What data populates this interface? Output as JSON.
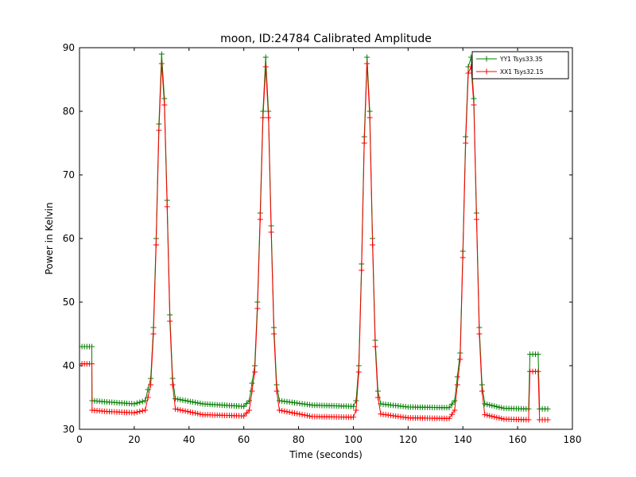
{
  "chart_data": {
    "type": "line",
    "title": "moon, ID:24784 Calibrated Amplitude",
    "xlabel": "Time (seconds)",
    "ylabel": "Power in Kelvin",
    "xlim": [
      0,
      180
    ],
    "ylim": [
      30,
      90
    ],
    "xticks": [
      0,
      20,
      40,
      60,
      80,
      100,
      120,
      140,
      160,
      180
    ],
    "yticks": [
      30,
      40,
      50,
      60,
      70,
      80,
      90
    ],
    "legend_position": "top-right",
    "series": [
      {
        "name": "YY1 Tsys33.35",
        "color": "#008000",
        "marker": "+",
        "points": [
          [
            0,
            43.0
          ],
          [
            4.5,
            43.0
          ],
          [
            4.6,
            34.5
          ],
          [
            10,
            34.3
          ],
          [
            20,
            34.0
          ],
          [
            24,
            34.5
          ],
          [
            26,
            38
          ],
          [
            27,
            46
          ],
          [
            28,
            60
          ],
          [
            29,
            78
          ],
          [
            30,
            89.0
          ],
          [
            31,
            82
          ],
          [
            32,
            66
          ],
          [
            33,
            48
          ],
          [
            34,
            38
          ],
          [
            35,
            34.8
          ],
          [
            45,
            34.0
          ],
          [
            60,
            33.6
          ],
          [
            62,
            34.5
          ],
          [
            64,
            40
          ],
          [
            65,
            50
          ],
          [
            66,
            64
          ],
          [
            67,
            80
          ],
          [
            68,
            88.5
          ],
          [
            69,
            80
          ],
          [
            70,
            62
          ],
          [
            71,
            46
          ],
          [
            72,
            37
          ],
          [
            73,
            34.5
          ],
          [
            85,
            33.8
          ],
          [
            100,
            33.6
          ],
          [
            101,
            34.5
          ],
          [
            102,
            40
          ],
          [
            103,
            56
          ],
          [
            104,
            76
          ],
          [
            105,
            88.5
          ],
          [
            106,
            80
          ],
          [
            107,
            60
          ],
          [
            108,
            44
          ],
          [
            109,
            36
          ],
          [
            110,
            34.0
          ],
          [
            120,
            33.5
          ],
          [
            135,
            33.4
          ],
          [
            137,
            34.5
          ],
          [
            139,
            42
          ],
          [
            140,
            58
          ],
          [
            141,
            76
          ],
          [
            142,
            87
          ],
          [
            143,
            88.5
          ],
          [
            144,
            82
          ],
          [
            145,
            64
          ],
          [
            146,
            46
          ],
          [
            147,
            37
          ],
          [
            148,
            34.0
          ],
          [
            155,
            33.3
          ],
          [
            164,
            33.2
          ],
          [
            164.5,
            41.8
          ],
          [
            167.5,
            41.8
          ],
          [
            168,
            33.2
          ],
          [
            171,
            33.2
          ]
        ]
      },
      {
        "name": "XX1 Tsys32.15",
        "color": "#ff0000",
        "marker": "+",
        "points": [
          [
            0,
            40.3
          ],
          [
            4.5,
            40.3
          ],
          [
            4.6,
            33.0
          ],
          [
            10,
            32.8
          ],
          [
            20,
            32.6
          ],
          [
            24,
            33.0
          ],
          [
            26,
            37
          ],
          [
            27,
            45
          ],
          [
            28,
            59
          ],
          [
            29,
            77
          ],
          [
            30,
            87.5
          ],
          [
            31,
            81
          ],
          [
            32,
            65
          ],
          [
            33,
            47
          ],
          [
            34,
            37
          ],
          [
            35,
            33.2
          ],
          [
            45,
            32.3
          ],
          [
            60,
            32.1
          ],
          [
            62,
            33.0
          ],
          [
            64,
            39
          ],
          [
            65,
            49
          ],
          [
            66,
            63
          ],
          [
            67,
            79
          ],
          [
            68,
            87.0
          ],
          [
            69,
            79
          ],
          [
            70,
            61
          ],
          [
            71,
            45
          ],
          [
            72,
            36
          ],
          [
            73,
            33.0
          ],
          [
            85,
            32.0
          ],
          [
            100,
            31.9
          ],
          [
            101,
            33.0
          ],
          [
            102,
            39
          ],
          [
            103,
            55
          ],
          [
            104,
            75
          ],
          [
            105,
            87.5
          ],
          [
            106,
            79
          ],
          [
            107,
            59
          ],
          [
            108,
            43
          ],
          [
            109,
            35
          ],
          [
            110,
            32.4
          ],
          [
            120,
            31.8
          ],
          [
            135,
            31.7
          ],
          [
            137,
            33.0
          ],
          [
            139,
            41
          ],
          [
            140,
            57
          ],
          [
            141,
            75
          ],
          [
            142,
            86
          ],
          [
            143,
            87.0
          ],
          [
            144,
            81
          ],
          [
            145,
            63
          ],
          [
            146,
            45
          ],
          [
            147,
            36
          ],
          [
            148,
            32.3
          ],
          [
            155,
            31.6
          ],
          [
            164,
            31.5
          ],
          [
            164.5,
            39.1
          ],
          [
            167.5,
            39.1
          ],
          [
            168,
            31.5
          ],
          [
            171,
            31.5
          ]
        ]
      }
    ]
  }
}
